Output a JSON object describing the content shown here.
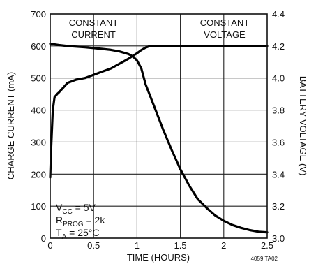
{
  "chart_data": {
    "type": "line",
    "x_axis": {
      "label": "TIME (HOURS)",
      "range": [
        0,
        2.5
      ],
      "ticks": [
        0,
        0.5,
        1,
        1.5,
        2,
        2.5
      ],
      "tick_labels": [
        "0",
        "0.5",
        "1",
        "1.5",
        "2",
        "2.5"
      ]
    },
    "y_axis_left": {
      "label": "CHARGE CURRENT (mA)",
      "range": [
        0,
        700
      ],
      "ticks": [
        0,
        100,
        200,
        300,
        400,
        500,
        600,
        700
      ],
      "tick_labels": [
        "0",
        "100",
        "200",
        "300",
        "400",
        "500",
        "600",
        "700"
      ]
    },
    "y_axis_right": {
      "label": "BATTERY VOLTAGE (V)",
      "range": [
        3.0,
        4.4
      ],
      "ticks": [
        3.0,
        3.2,
        3.4,
        3.6,
        3.8,
        4.0,
        4.2,
        4.4
      ],
      "tick_labels": [
        "3.0",
        "3.2",
        "3.4",
        "3.6",
        "3.8",
        "4.0",
        "4.2",
        "4.4"
      ]
    },
    "grid": true,
    "regions": [
      {
        "line1": "CONSTANT",
        "line2": "CURRENT"
      },
      {
        "line1": "CONSTANT",
        "line2": "VOLTAGE"
      }
    ],
    "series": [
      {
        "axis": "left",
        "x": [
          0,
          0.1,
          0.2,
          0.4,
          0.6,
          0.7,
          0.8,
          0.9,
          0.95,
          1.0,
          1.05,
          1.1,
          1.2,
          1.3,
          1.4,
          1.5,
          1.6,
          1.7,
          1.8,
          1.9,
          2.0,
          2.1,
          2.2,
          2.3,
          2.4,
          2.5
        ],
        "y": [
          607,
          603,
          600,
          596,
          591,
          588,
          583,
          575,
          568,
          555,
          530,
          480,
          410,
          340,
          275,
          215,
          165,
          122,
          95,
          71,
          54,
          41,
          32,
          25,
          20,
          18
        ]
      },
      {
        "axis": "right",
        "x": [
          0,
          0.01,
          0.03,
          0.05,
          0.08,
          0.1,
          0.15,
          0.2,
          0.3,
          0.4,
          0.5,
          0.6,
          0.7,
          0.8,
          0.9,
          1.0,
          1.05,
          1.1,
          1.15,
          1.2,
          1.5,
          2.0,
          2.5
        ],
        "y": [
          3.38,
          3.55,
          3.8,
          3.88,
          3.9,
          3.91,
          3.94,
          3.97,
          3.99,
          4.0,
          4.02,
          4.04,
          4.06,
          4.09,
          4.12,
          4.155,
          4.175,
          4.19,
          4.2,
          4.2,
          4.2,
          4.2,
          4.2
        ]
      }
    ],
    "annotations": {
      "vcc_main": "V",
      "vcc_sub": "CC",
      "vcc_rest": " = 5V",
      "rprog_main": "R",
      "rprog_sub": "PROG",
      "rprog_rest": " = 2k",
      "ta_main": "T",
      "ta_sub": "A",
      "ta_rest": " = 25°C"
    },
    "footer": "4059 TA02"
  }
}
